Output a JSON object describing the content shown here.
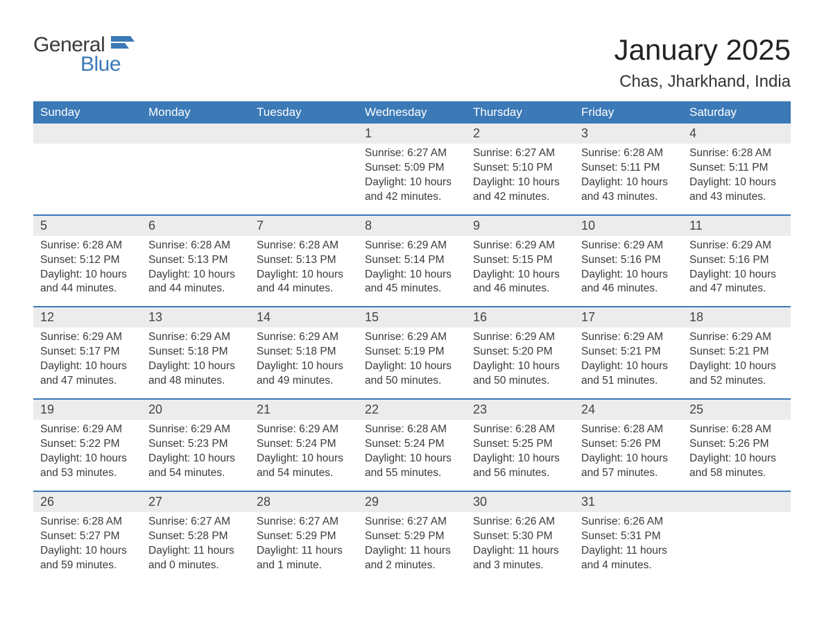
{
  "brand": {
    "word1": "General",
    "word2": "Blue",
    "accent_color": "#3b79b7"
  },
  "title": "January 2025",
  "location": "Chas, Jharkhand, India",
  "colors": {
    "header_bg": "#3b79b7",
    "header_text": "#ffffff",
    "daynum_bg": "#ececec",
    "row_border": "#3b79b7",
    "body_text": "#3a3a3a",
    "page_bg": "#ffffff"
  },
  "weekdays": [
    "Sunday",
    "Monday",
    "Tuesday",
    "Wednesday",
    "Thursday",
    "Friday",
    "Saturday"
  ],
  "weeks": [
    [
      null,
      null,
      null,
      {
        "n": "1",
        "sunrise": "6:27 AM",
        "sunset": "5:09 PM",
        "daylight": "10 hours and 42 minutes."
      },
      {
        "n": "2",
        "sunrise": "6:27 AM",
        "sunset": "5:10 PM",
        "daylight": "10 hours and 42 minutes."
      },
      {
        "n": "3",
        "sunrise": "6:28 AM",
        "sunset": "5:11 PM",
        "daylight": "10 hours and 43 minutes."
      },
      {
        "n": "4",
        "sunrise": "6:28 AM",
        "sunset": "5:11 PM",
        "daylight": "10 hours and 43 minutes."
      }
    ],
    [
      {
        "n": "5",
        "sunrise": "6:28 AM",
        "sunset": "5:12 PM",
        "daylight": "10 hours and 44 minutes."
      },
      {
        "n": "6",
        "sunrise": "6:28 AM",
        "sunset": "5:13 PM",
        "daylight": "10 hours and 44 minutes."
      },
      {
        "n": "7",
        "sunrise": "6:28 AM",
        "sunset": "5:13 PM",
        "daylight": "10 hours and 44 minutes."
      },
      {
        "n": "8",
        "sunrise": "6:29 AM",
        "sunset": "5:14 PM",
        "daylight": "10 hours and 45 minutes."
      },
      {
        "n": "9",
        "sunrise": "6:29 AM",
        "sunset": "5:15 PM",
        "daylight": "10 hours and 46 minutes."
      },
      {
        "n": "10",
        "sunrise": "6:29 AM",
        "sunset": "5:16 PM",
        "daylight": "10 hours and 46 minutes."
      },
      {
        "n": "11",
        "sunrise": "6:29 AM",
        "sunset": "5:16 PM",
        "daylight": "10 hours and 47 minutes."
      }
    ],
    [
      {
        "n": "12",
        "sunrise": "6:29 AM",
        "sunset": "5:17 PM",
        "daylight": "10 hours and 47 minutes."
      },
      {
        "n": "13",
        "sunrise": "6:29 AM",
        "sunset": "5:18 PM",
        "daylight": "10 hours and 48 minutes."
      },
      {
        "n": "14",
        "sunrise": "6:29 AM",
        "sunset": "5:18 PM",
        "daylight": "10 hours and 49 minutes."
      },
      {
        "n": "15",
        "sunrise": "6:29 AM",
        "sunset": "5:19 PM",
        "daylight": "10 hours and 50 minutes."
      },
      {
        "n": "16",
        "sunrise": "6:29 AM",
        "sunset": "5:20 PM",
        "daylight": "10 hours and 50 minutes."
      },
      {
        "n": "17",
        "sunrise": "6:29 AM",
        "sunset": "5:21 PM",
        "daylight": "10 hours and 51 minutes."
      },
      {
        "n": "18",
        "sunrise": "6:29 AM",
        "sunset": "5:21 PM",
        "daylight": "10 hours and 52 minutes."
      }
    ],
    [
      {
        "n": "19",
        "sunrise": "6:29 AM",
        "sunset": "5:22 PM",
        "daylight": "10 hours and 53 minutes."
      },
      {
        "n": "20",
        "sunrise": "6:29 AM",
        "sunset": "5:23 PM",
        "daylight": "10 hours and 54 minutes."
      },
      {
        "n": "21",
        "sunrise": "6:29 AM",
        "sunset": "5:24 PM",
        "daylight": "10 hours and 54 minutes."
      },
      {
        "n": "22",
        "sunrise": "6:28 AM",
        "sunset": "5:24 PM",
        "daylight": "10 hours and 55 minutes."
      },
      {
        "n": "23",
        "sunrise": "6:28 AM",
        "sunset": "5:25 PM",
        "daylight": "10 hours and 56 minutes."
      },
      {
        "n": "24",
        "sunrise": "6:28 AM",
        "sunset": "5:26 PM",
        "daylight": "10 hours and 57 minutes."
      },
      {
        "n": "25",
        "sunrise": "6:28 AM",
        "sunset": "5:26 PM",
        "daylight": "10 hours and 58 minutes."
      }
    ],
    [
      {
        "n": "26",
        "sunrise": "6:28 AM",
        "sunset": "5:27 PM",
        "daylight": "10 hours and 59 minutes."
      },
      {
        "n": "27",
        "sunrise": "6:27 AM",
        "sunset": "5:28 PM",
        "daylight": "11 hours and 0 minutes."
      },
      {
        "n": "28",
        "sunrise": "6:27 AM",
        "sunset": "5:29 PM",
        "daylight": "11 hours and 1 minute."
      },
      {
        "n": "29",
        "sunrise": "6:27 AM",
        "sunset": "5:29 PM",
        "daylight": "11 hours and 2 minutes."
      },
      {
        "n": "30",
        "sunrise": "6:26 AM",
        "sunset": "5:30 PM",
        "daylight": "11 hours and 3 minutes."
      },
      {
        "n": "31",
        "sunrise": "6:26 AM",
        "sunset": "5:31 PM",
        "daylight": "11 hours and 4 minutes."
      },
      null
    ]
  ],
  "labels": {
    "sunrise": "Sunrise:",
    "sunset": "Sunset:",
    "daylight": "Daylight:"
  }
}
